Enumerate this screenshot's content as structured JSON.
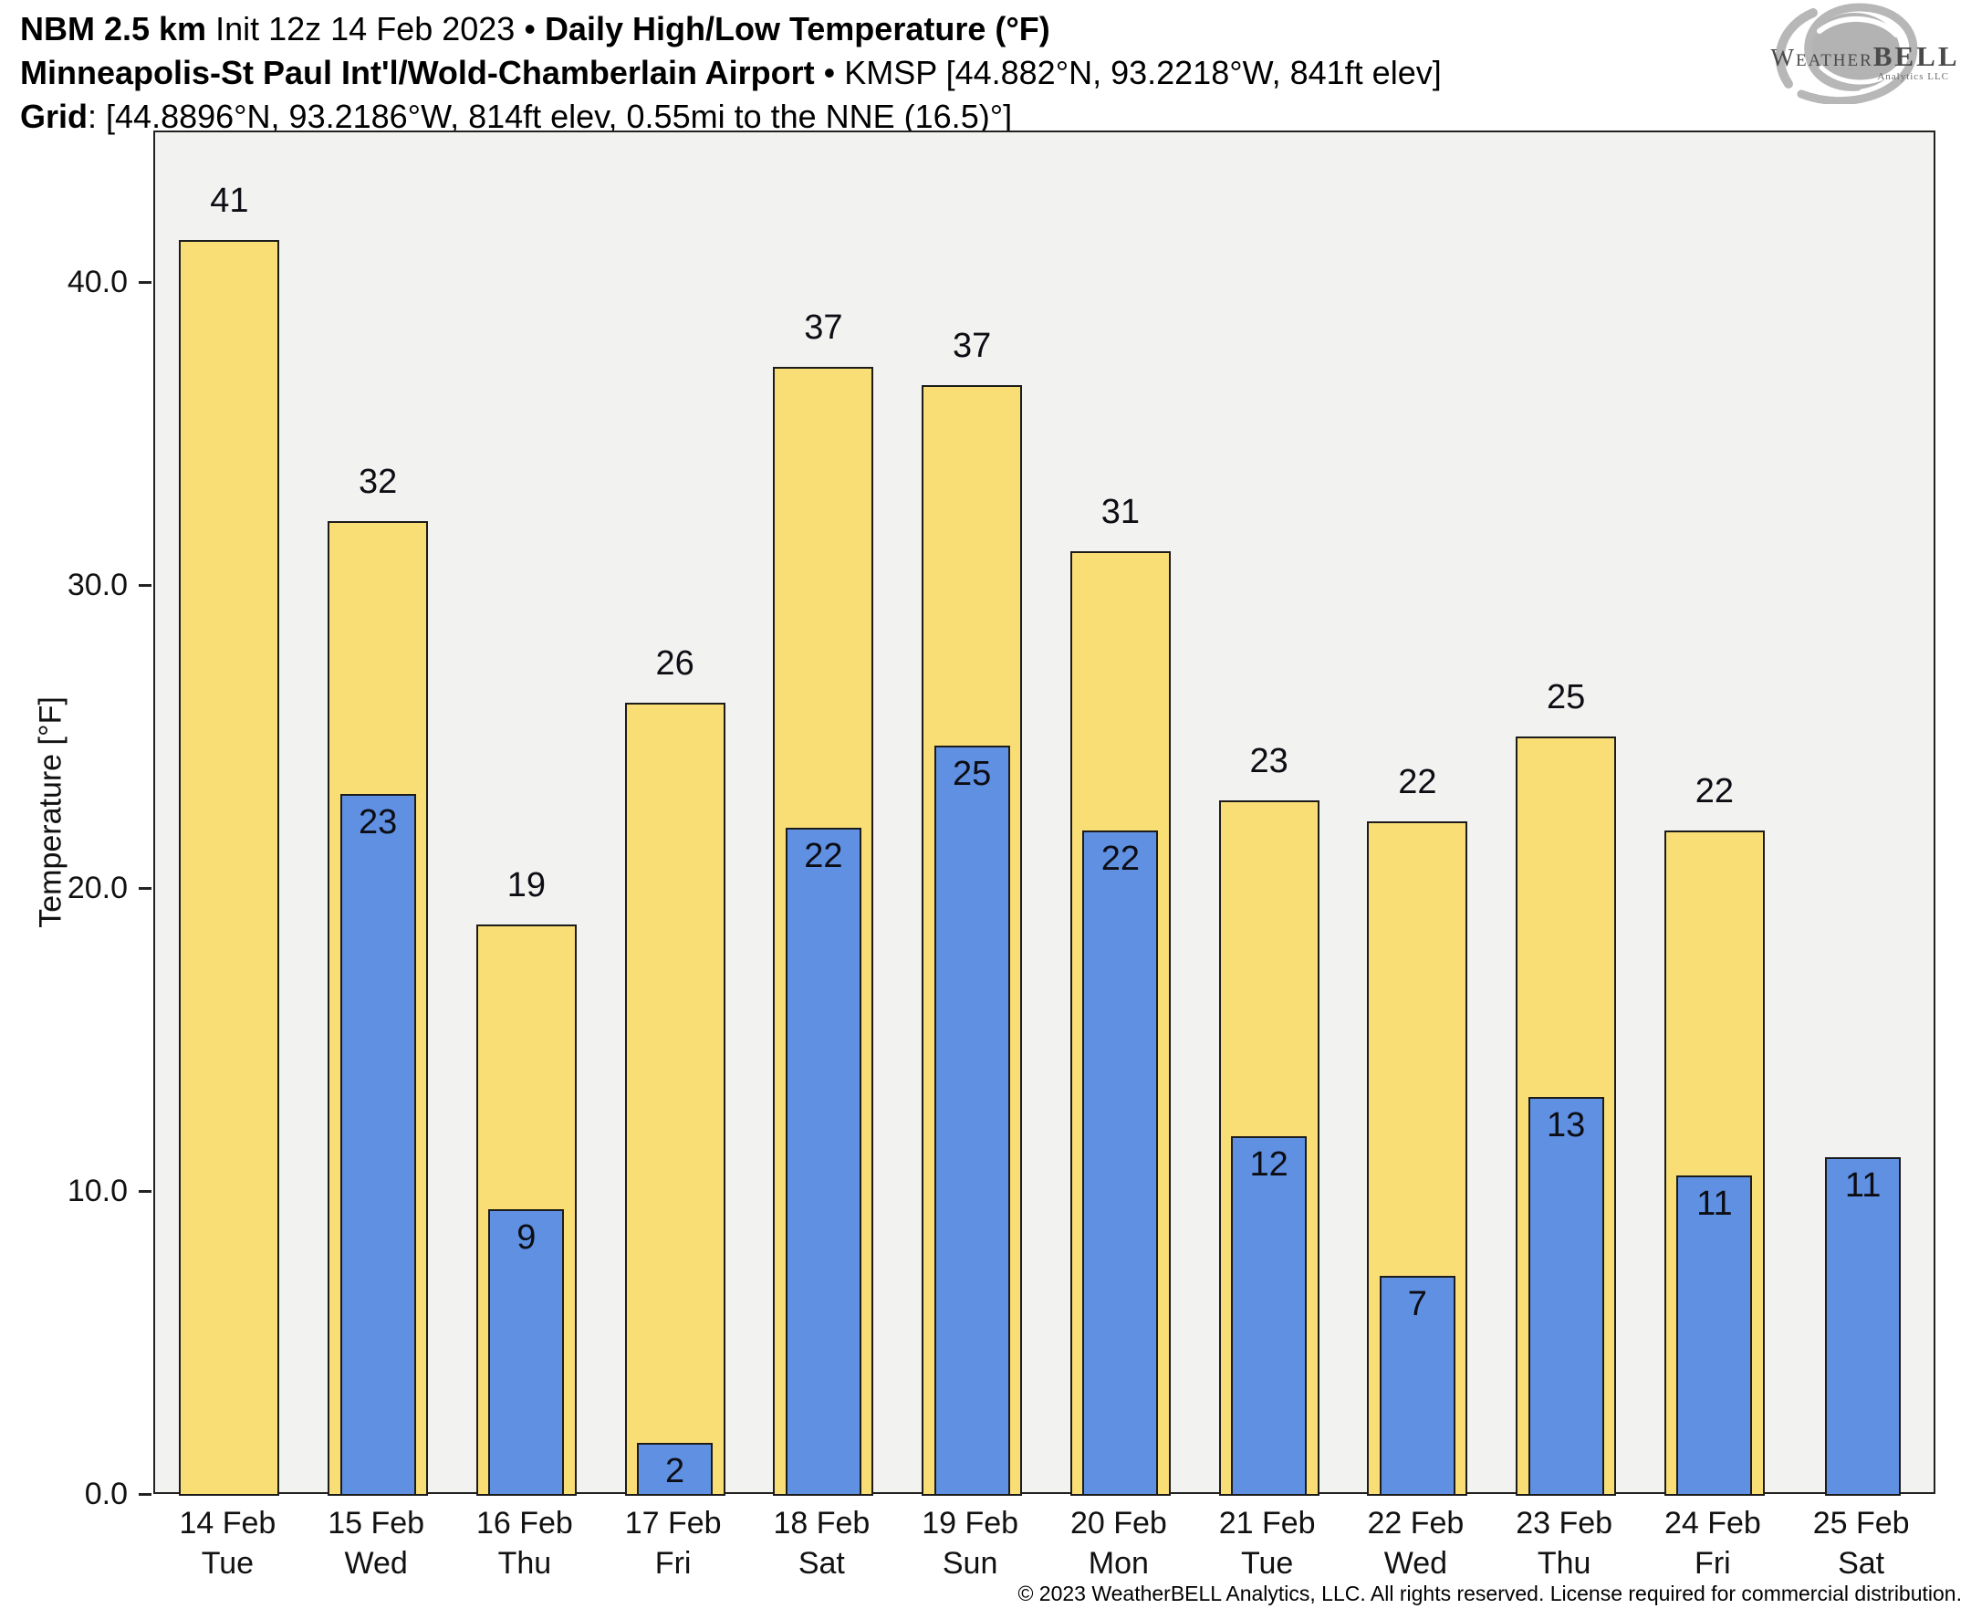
{
  "header": {
    "line1_bold": "NBM 2.5 km",
    "line1_rest": " Init 12z 14 Feb 2023 • ",
    "line1_bold2": "Daily High/Low Temperature (°F)",
    "line2_bold": "Minneapolis-St Paul Int'l/Wold-Chamberlain Airport",
    "line2_rest": " • KMSP [44.882°N, 93.2218°W, 841ft elev]",
    "line3_bold": "Grid",
    "line3_rest": ": [44.8896°N, 93.2186°W, 814ft elev, 0.55mi to the NNE (16.5)°]"
  },
  "logo": {
    "brand_serif": "Weather",
    "brand_bold": "BELL",
    "subtitle": "Analytics LLC"
  },
  "colors": {
    "high_fill": "#F9DE76",
    "low_fill": "#5F90E2",
    "bar_outline": "#1c1c1c",
    "plot_background": "#F2F2F1",
    "axis_color": "#222222"
  },
  "chart_data": {
    "type": "bar",
    "title": "NBM 2.5 km Init 12z 14 Feb 2023 • Daily High/Low Temperature (°F)",
    "subtitle": "Minneapolis-St Paul Int'l/Wold-Chamberlain Airport • KMSP [44.882°N, 93.2218°W, 841ft elev]",
    "ylabel": "Temperature [°F]",
    "ylim": [
      0,
      45
    ],
    "grid": false,
    "legend": false,
    "yticks": [
      {
        "v": 0,
        "label": "0.0"
      },
      {
        "v": 10,
        "label": "10.0"
      },
      {
        "v": 20,
        "label": "20.0"
      },
      {
        "v": 30,
        "label": "30.0"
      },
      {
        "v": 40,
        "label": "40.0"
      }
    ],
    "categories": [
      {
        "date": "14 Feb",
        "day": "Tue"
      },
      {
        "date": "15 Feb",
        "day": "Wed"
      },
      {
        "date": "16 Feb",
        "day": "Thu"
      },
      {
        "date": "17 Feb",
        "day": "Fri"
      },
      {
        "date": "18 Feb",
        "day": "Sat"
      },
      {
        "date": "19 Feb",
        "day": "Sun"
      },
      {
        "date": "20 Feb",
        "day": "Mon"
      },
      {
        "date": "21 Feb",
        "day": "Tue"
      },
      {
        "date": "22 Feb",
        "day": "Wed"
      },
      {
        "date": "23 Feb",
        "day": "Thu"
      },
      {
        "date": "24 Feb",
        "day": "Fri"
      },
      {
        "date": "25 Feb",
        "day": "Sat"
      }
    ],
    "series": [
      {
        "name": "Daily High",
        "color": "#F9DE76",
        "label_position": "above",
        "values": [
          41.4,
          32.1,
          18.8,
          26.1,
          37.2,
          36.6,
          31.1,
          22.9,
          22.2,
          25.0,
          21.9,
          null
        ],
        "labels": [
          "41",
          "32",
          "19",
          "26",
          "37",
          "37",
          "31",
          "23",
          "22",
          "25",
          "22",
          ""
        ]
      },
      {
        "name": "Daily Low",
        "color": "#5F90E2",
        "label_position": "inside-top",
        "values": [
          null,
          23.1,
          9.4,
          1.7,
          22.0,
          24.7,
          21.9,
          11.8,
          7.2,
          13.1,
          10.5,
          11.1
        ],
        "labels": [
          "",
          "23",
          "9",
          "2",
          "22",
          "25",
          "22",
          "12",
          "7",
          "13",
          "11",
          "11"
        ]
      }
    ]
  },
  "footer": {
    "copyright": "© 2023 WeatherBELL Analytics, LLC. All rights reserved. License required for commercial distribution."
  }
}
